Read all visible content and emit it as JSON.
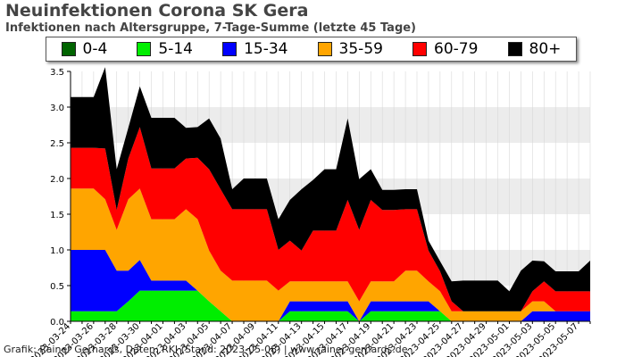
{
  "header": {
    "title": "Neuinfektionen Corona SK Gera",
    "subtitle": "Infektionen nach Altersgruppe, 7-Tage-Summe (letzte 45 Tage)"
  },
  "footer": {
    "credit": "Grafik: Rainer Gerhards, Daten: RKI (Stand: 2023-05-08) | www.rainer-gerhards.de"
  },
  "chart_data": {
    "type": "area",
    "stacked": true,
    "title": "Neuinfektionen Corona SK Gera",
    "subtitle": "Infektionen nach Altersgruppe, 7-Tage-Summe (letzte 45 Tage)",
    "legend_position": "top",
    "grid": "horizontal bands",
    "ylim": [
      0,
      3.5
    ],
    "yticks": [
      "0.0",
      "0.5",
      "1.0",
      "1.5",
      "2.0",
      "2.5",
      "3.0",
      "3.5"
    ],
    "x": [
      "2023-03-24",
      "2023-03-25",
      "2023-03-26",
      "2023-03-27",
      "2023-03-28",
      "2023-03-29",
      "2023-03-30",
      "2023-03-31",
      "2023-04-01",
      "2023-04-02",
      "2023-04-03",
      "2023-04-04",
      "2023-04-05",
      "2023-04-06",
      "2023-04-07",
      "2023-04-08",
      "2023-04-09",
      "2023-04-10",
      "2023-04-11",
      "2023-04-12",
      "2023-04-13",
      "2023-04-14",
      "2023-04-15",
      "2023-04-16",
      "2023-04-17",
      "2023-04-18",
      "2023-04-19",
      "2023-04-20",
      "2023-04-21",
      "2023-04-22",
      "2023-04-23",
      "2023-04-24",
      "2023-04-25",
      "2023-04-26",
      "2023-04-27",
      "2023-04-28",
      "2023-04-29",
      "2023-04-30",
      "2023-05-01",
      "2023-05-02",
      "2023-05-03",
      "2023-05-04",
      "2023-05-05",
      "2023-05-06",
      "2023-05-07",
      "2023-05-08"
    ],
    "xtick_labels": [
      "2023-03-24",
      "2023-03-26",
      "2023-03-28",
      "2023-03-30",
      "2023-04-01",
      "2023-04-03",
      "2023-04-05",
      "2023-04-07",
      "2023-04-09",
      "2023-04-11",
      "2023-04-13",
      "2023-04-15",
      "2023-04-17",
      "2023-04-19",
      "2023-04-21",
      "2023-04-23",
      "2023-04-25",
      "2023-04-27",
      "2023-04-29",
      "2023-05-01",
      "2023-05-03",
      "2023-05-05",
      "2023-05-07"
    ],
    "series": [
      {
        "name": "0-4",
        "color": "#006400",
        "values": [
          0,
          0,
          0,
          0,
          0,
          0,
          0,
          0,
          0,
          0,
          0,
          0,
          0,
          0,
          0,
          0,
          0,
          0,
          0,
          0,
          0,
          0,
          0,
          0,
          0,
          0,
          0,
          0,
          0,
          0,
          0,
          0,
          0,
          0,
          0,
          0,
          0,
          0,
          0,
          0,
          0,
          0,
          0,
          0,
          0,
          0
        ]
      },
      {
        "name": "5-14",
        "color": "#00ee00",
        "values": [
          0.14,
          0.14,
          0.14,
          0.14,
          0.14,
          0.28,
          0.43,
          0.43,
          0.43,
          0.43,
          0.43,
          0.43,
          0.28,
          0.14,
          0,
          0,
          0,
          0,
          0,
          0.14,
          0.14,
          0.14,
          0.14,
          0.14,
          0.14,
          0,
          0.14,
          0.14,
          0.14,
          0.14,
          0.14,
          0.14,
          0.14,
          0,
          0,
          0,
          0,
          0,
          0,
          0,
          0,
          0,
          0,
          0,
          0,
          0
        ]
      },
      {
        "name": "15-34",
        "color": "#0000ff",
        "values": [
          0.86,
          0.86,
          0.86,
          0.86,
          0.57,
          0.43,
          0.43,
          0.14,
          0.14,
          0.14,
          0.14,
          0,
          0,
          0,
          0,
          0,
          0,
          0,
          0,
          0.14,
          0.14,
          0.14,
          0.14,
          0.14,
          0.14,
          0,
          0.14,
          0.14,
          0.14,
          0.14,
          0.14,
          0.14,
          0,
          0,
          0,
          0,
          0,
          0,
          0,
          0,
          0.14,
          0.14,
          0.14,
          0.14,
          0.14,
          0.14
        ]
      },
      {
        "name": "35-59",
        "color": "#ffa500",
        "values": [
          0.86,
          0.86,
          0.86,
          0.71,
          0.57,
          1.0,
          1.0,
          0.86,
          0.86,
          0.86,
          1.0,
          1.0,
          0.71,
          0.57,
          0.57,
          0.57,
          0.57,
          0.57,
          0.43,
          0.28,
          0.28,
          0.28,
          0.28,
          0.28,
          0.28,
          0.28,
          0.28,
          0.28,
          0.28,
          0.43,
          0.43,
          0.28,
          0.28,
          0.14,
          0.14,
          0.14,
          0.14,
          0.14,
          0.14,
          0.14,
          0.14,
          0.14,
          0,
          0,
          0,
          0
        ]
      },
      {
        "name": "60-79",
        "color": "#ff0000",
        "values": [
          0.57,
          0.57,
          0.57,
          0.71,
          0.28,
          0.57,
          0.86,
          0.71,
          0.71,
          0.71,
          0.71,
          0.86,
          1.14,
          1.14,
          1.0,
          1.0,
          1.0,
          1.0,
          0.57,
          0.57,
          0.43,
          0.71,
          0.71,
          0.71,
          1.14,
          1.0,
          1.14,
          1.0,
          1.0,
          0.86,
          0.86,
          0.43,
          0.28,
          0.14,
          0,
          0,
          0,
          0,
          0,
          0,
          0.14,
          0.28,
          0.28,
          0.28,
          0.28,
          0.28
        ]
      },
      {
        "name": "80+",
        "color": "#000000",
        "values": [
          0.71,
          0.71,
          0.71,
          1.14,
          0.57,
          0.43,
          0.57,
          0.71,
          0.71,
          0.71,
          0.43,
          0.43,
          0.71,
          0.71,
          0.28,
          0.43,
          0.43,
          0.43,
          0.43,
          0.57,
          0.86,
          0.71,
          0.86,
          0.86,
          1.14,
          0.71,
          0.43,
          0.28,
          0.28,
          0.28,
          0.28,
          0.14,
          0.14,
          0.28,
          0.43,
          0.43,
          0.43,
          0.43,
          0.28,
          0.57,
          0.43,
          0.28,
          0.28,
          0.28,
          0.28,
          0.43
        ]
      }
    ]
  }
}
